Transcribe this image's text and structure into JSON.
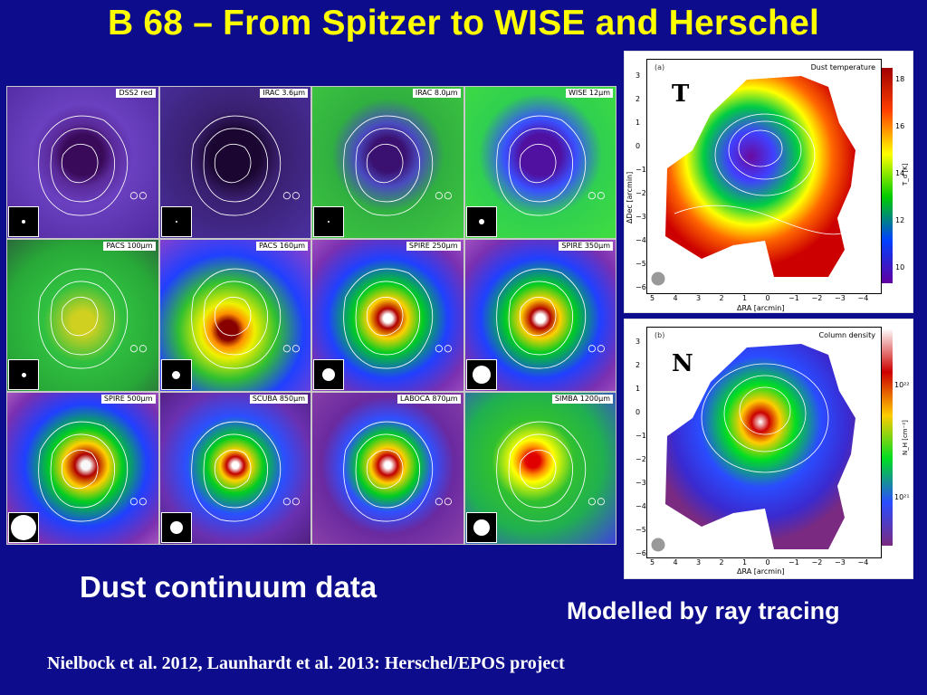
{
  "title": "B 68 – From Spitzer to WISE and Herschel",
  "panels": [
    {
      "label": "DSS2 red",
      "style": "stars",
      "beam": 4
    },
    {
      "label": "IRAC 3.6μm",
      "style": "stars-dark",
      "beam": 2
    },
    {
      "label": "IRAC 8.0μm",
      "style": "stars-green",
      "beam": 2
    },
    {
      "label": "WISE 12μm",
      "style": "wise",
      "beam": 6
    },
    {
      "label": "PACS 100μm",
      "style": "pacs100",
      "beam": 5
    },
    {
      "label": "PACS 160μm",
      "style": "pacs160",
      "beam": 9
    },
    {
      "label": "SPIRE 250μm",
      "style": "core",
      "beam": 14
    },
    {
      "label": "SPIRE 350μm",
      "style": "core",
      "beam": 20
    },
    {
      "label": "SPIRE 500μm",
      "style": "core-pix",
      "beam": 28
    },
    {
      "label": "SCUBA 850μm",
      "style": "scuba",
      "beam": 14
    },
    {
      "label": "LABOCA 870μm",
      "style": "laboca",
      "beam": 0
    },
    {
      "label": "SIMBA 1200μm",
      "style": "simba",
      "beam": 18
    }
  ],
  "map_temperature": {
    "tag": "T",
    "panel_id": "(a)",
    "name": "Dust temperature",
    "colorbar_ticks": [
      "18",
      "16",
      "14",
      "12",
      "10"
    ],
    "colorbar_label": "T_d [K]",
    "x_ticks": [
      "5",
      "4",
      "3",
      "2",
      "1",
      "0",
      "−1",
      "−2",
      "−3",
      "−4"
    ],
    "y_ticks": [
      "3",
      "2",
      "1",
      "0",
      "−1",
      "−2",
      "−3",
      "−4",
      "−5",
      "−6"
    ],
    "x_label": "ΔRA [arcmin]",
    "y_label": "ΔDec [arcmin]"
  },
  "map_density": {
    "tag": "N",
    "panel_id": "(b)",
    "name": "Column density",
    "colorbar_ticks": [
      "10²²",
      "10²¹"
    ],
    "colorbar_label": "N_H [cm⁻²]",
    "x_ticks": [
      "5",
      "4",
      "3",
      "2",
      "1",
      "0",
      "−1",
      "−2",
      "−3",
      "−4"
    ],
    "y_ticks": [
      "3",
      "2",
      "1",
      "0",
      "−1",
      "−2",
      "−3",
      "−4",
      "−5",
      "−6"
    ],
    "x_label": "ΔRA [arcmin]"
  },
  "caption_left": "Dust continuum data",
  "caption_right": "Modelled by ray tracing",
  "citation": "Nielbock et al. 2012, Launhardt et al. 2013: Herschel/EPOS project",
  "colors": {
    "background": "#0c0c8c",
    "title": "#ffff00",
    "caption": "#ffffff"
  }
}
